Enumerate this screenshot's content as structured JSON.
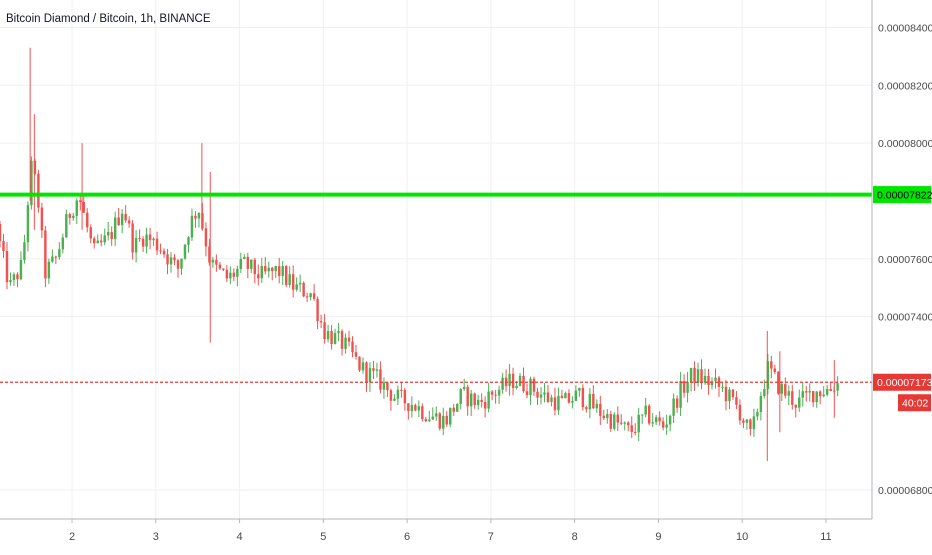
{
  "title": "Bitcoin Diamond / Bitcoin, 1h, BINANCE",
  "colors": {
    "up": "#26a69a",
    "up_candle": "#4caf50",
    "down": "#ef5350",
    "resistance": "#00e600",
    "current_price": "#e53935",
    "grid": "#eef0f3",
    "axis_text": "#4a4a4a"
  },
  "chart_data": {
    "type": "candlestick",
    "title": "Bitcoin Diamond / Bitcoin, 1h, BINANCE",
    "xlabel": "",
    "ylabel": "",
    "x_ticks": [
      {
        "label": "2",
        "x": 2
      },
      {
        "label": "3",
        "x": 3
      },
      {
        "label": "4",
        "x": 4
      },
      {
        "label": "5",
        "x": 5
      },
      {
        "label": "6",
        "x": 6
      },
      {
        "label": "7",
        "x": 7
      },
      {
        "label": "8",
        "x": 8
      },
      {
        "label": "9",
        "x": 9
      },
      {
        "label": "10",
        "x": 10
      },
      {
        "label": "11",
        "x": 11
      }
    ],
    "xlim": [
      1.14,
      11.55
    ],
    "y_ticks": [
      "0.00008400",
      "0.00008200",
      "0.00008000",
      "0.00007600",
      "0.00007400",
      "0.00006800"
    ],
    "ylim": [
      6.7e-05,
      8.495e-05
    ],
    "horizontal_lines": [
      {
        "name": "resistance",
        "value": 7.822e-05,
        "label": "0.00007822",
        "style": "solid"
      },
      {
        "name": "last-price",
        "value": 7.173e-05,
        "label": "0.00007173",
        "style": "dashed",
        "countdown": "40:02"
      }
    ],
    "anchors": [
      [
        1.14,
        7.72
      ],
      [
        1.2,
        7.62
      ],
      [
        1.3,
        7.5
      ],
      [
        1.45,
        7.58
      ],
      [
        1.55,
        7.92
      ],
      [
        1.62,
        7.85
      ],
      [
        1.72,
        7.55
      ],
      [
        1.85,
        7.6
      ],
      [
        2.0,
        7.75
      ],
      [
        2.12,
        7.82
      ],
      [
        2.3,
        7.62
      ],
      [
        2.5,
        7.68
      ],
      [
        2.65,
        7.78
      ],
      [
        2.78,
        7.64
      ],
      [
        2.9,
        7.68
      ],
      [
        3.1,
        7.64
      ],
      [
        3.3,
        7.56
      ],
      [
        3.45,
        7.72
      ],
      [
        3.55,
        7.78
      ],
      [
        3.7,
        7.58
      ],
      [
        3.9,
        7.53
      ],
      [
        4.1,
        7.58
      ],
      [
        4.3,
        7.54
      ],
      [
        4.5,
        7.56
      ],
      [
        4.7,
        7.5
      ],
      [
        4.9,
        7.48
      ],
      [
        5.05,
        7.35
      ],
      [
        5.3,
        7.3
      ],
      [
        5.5,
        7.22
      ],
      [
        5.7,
        7.18
      ],
      [
        5.9,
        7.12
      ],
      [
        6.1,
        7.1
      ],
      [
        6.3,
        7.06
      ],
      [
        6.5,
        7.04
      ],
      [
        6.7,
        7.13
      ],
      [
        6.9,
        7.1
      ],
      [
        7.1,
        7.14
      ],
      [
        7.3,
        7.18
      ],
      [
        7.5,
        7.16
      ],
      [
        7.7,
        7.12
      ],
      [
        7.9,
        7.1
      ],
      [
        8.1,
        7.13
      ],
      [
        8.3,
        7.08
      ],
      [
        8.5,
        7.04
      ],
      [
        8.7,
        7.0
      ],
      [
        8.9,
        7.06
      ],
      [
        9.1,
        7.02
      ],
      [
        9.3,
        7.14
      ],
      [
        9.45,
        7.2
      ],
      [
        9.6,
        7.18
      ],
      [
        9.8,
        7.15
      ],
      [
        10.0,
        7.08
      ],
      [
        10.15,
        6.98
      ],
      [
        10.25,
        7.12
      ],
      [
        10.35,
        7.22
      ],
      [
        10.5,
        7.15
      ],
      [
        10.7,
        7.1
      ],
      [
        10.9,
        7.14
      ],
      [
        11.1,
        7.15
      ],
      [
        11.16,
        7.17
      ]
    ],
    "wicks": [
      [
        1.5,
        8.33,
        7.8
      ],
      [
        1.55,
        8.1,
        7.7
      ],
      [
        2.12,
        8.0,
        7.7
      ],
      [
        3.55,
        8.0,
        7.7
      ],
      [
        3.65,
        7.9,
        7.31
      ],
      [
        10.3,
        7.35,
        6.9
      ],
      [
        10.45,
        7.28,
        7.0
      ],
      [
        11.1,
        7.25,
        7.05
      ]
    ],
    "value_scale": 1e-05
  }
}
